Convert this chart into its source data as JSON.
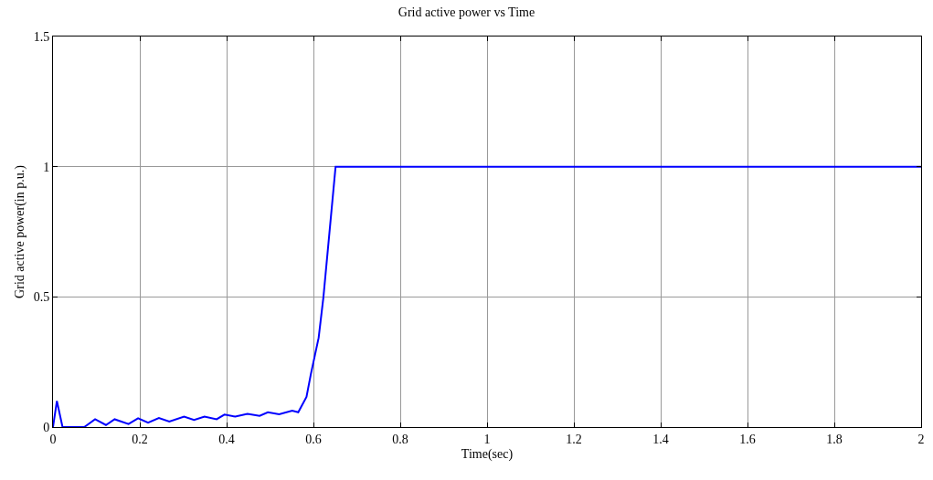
{
  "chart_data": {
    "type": "line",
    "title": "Grid active power vs Time",
    "xlabel": "Time(sec)",
    "ylabel": "Grid active power(in p.u.)",
    "x": [
      0,
      0.009,
      0.022,
      0.072,
      0.097,
      0.122,
      0.142,
      0.174,
      0.196,
      0.219,
      0.244,
      0.268,
      0.302,
      0.325,
      0.349,
      0.377,
      0.395,
      0.42,
      0.448,
      0.476,
      0.495,
      0.521,
      0.551,
      0.565,
      0.584,
      0.594,
      0.612,
      0.623,
      0.651,
      2
    ],
    "series": [
      {
        "color": "#0000ff",
        "values": [
          0,
          0.1,
          0,
          0,
          0.03,
          0.008,
          0.03,
          0.012,
          0.034,
          0.017,
          0.035,
          0.021,
          0.04,
          0.027,
          0.04,
          0.03,
          0.048,
          0.04,
          0.051,
          0.043,
          0.057,
          0.049,
          0.063,
          0.057,
          0.116,
          0.203,
          0.343,
          0.499,
          1.0,
          1.0
        ]
      }
    ],
    "xlim": [
      0,
      2
    ],
    "xticks": [
      0,
      0.2,
      0.4,
      0.6,
      0.8,
      1,
      1.2,
      1.4,
      1.6,
      1.8,
      2
    ],
    "ylim": [
      0,
      1.5
    ],
    "yticks": [
      0,
      0.5,
      1,
      1.5
    ],
    "grid": true,
    "legend": false,
    "marker": "none",
    "line_style": "solid"
  }
}
